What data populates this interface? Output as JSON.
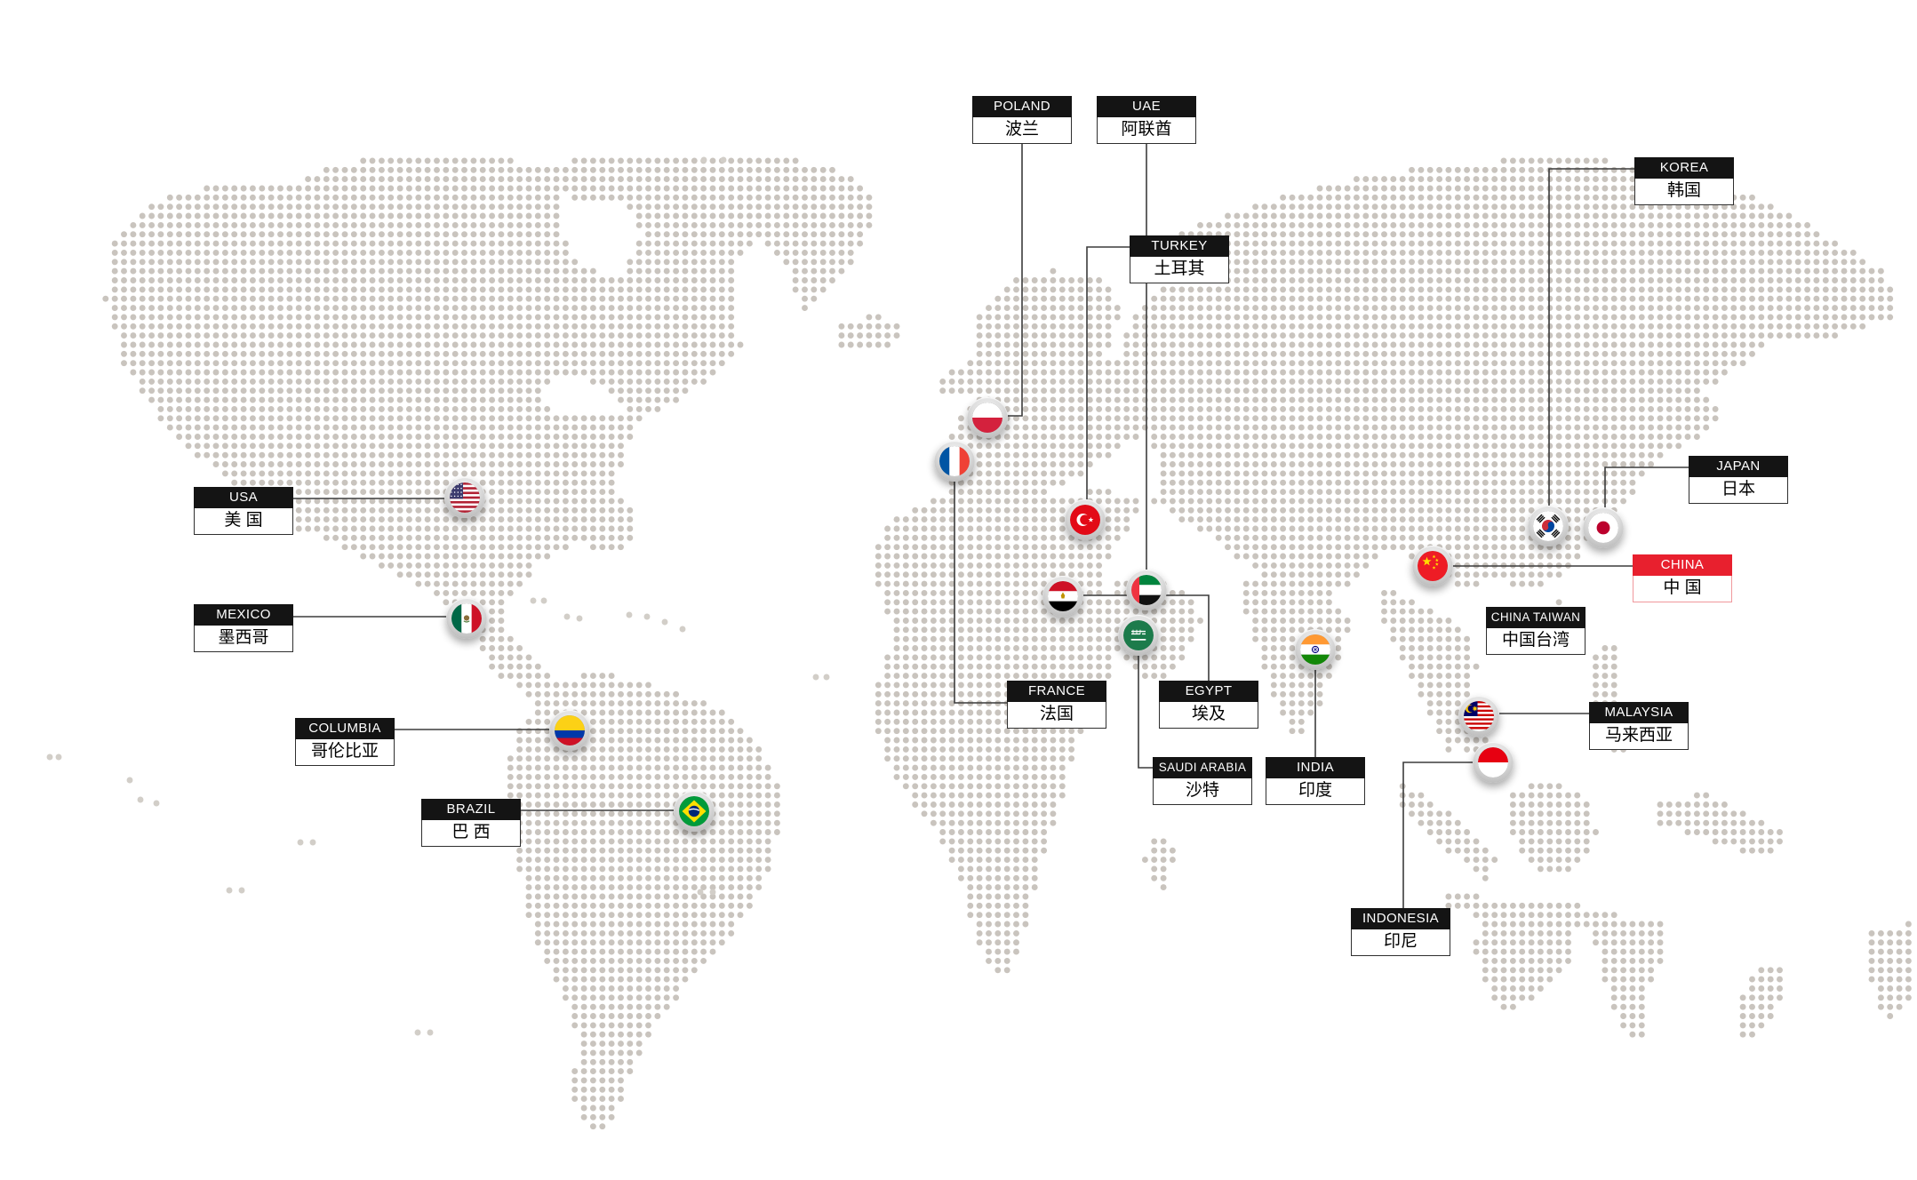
{
  "map": {
    "dot_color": "#c9c4be",
    "extra_dot_color": "#d2cec8",
    "connector_color": "#3c3c3c",
    "background": "#ffffff"
  },
  "label_style": {
    "header_bg": "#141414",
    "header_text": "#ffffff",
    "body_bg": "#ffffff",
    "body_text": "#000000",
    "border": "#2f2f2f",
    "highlight_header_bg": "#e8202e",
    "highlight_border": "#f0989c"
  },
  "countries": [
    {
      "id": "usa",
      "en": "USA",
      "zh": "美 国",
      "flag": "us",
      "highlight": false
    },
    {
      "id": "mexico",
      "en": "MEXICO",
      "zh": "墨西哥",
      "flag": "mx",
      "highlight": false
    },
    {
      "id": "columbia",
      "en": "COLUMBIA",
      "zh": "哥伦比亚",
      "flag": "co",
      "highlight": false
    },
    {
      "id": "brazil",
      "en": "BRAZIL",
      "zh": "巴 西",
      "flag": "br",
      "highlight": false
    },
    {
      "id": "poland",
      "en": "POLAND",
      "zh": "波兰",
      "flag": "pl",
      "highlight": false
    },
    {
      "id": "france",
      "en": "FRANCE",
      "zh": "法国",
      "flag": "fr",
      "highlight": false
    },
    {
      "id": "turkey",
      "en": "TURKEY",
      "zh": "土耳其",
      "flag": "tr",
      "highlight": false
    },
    {
      "id": "egypt",
      "en": "EGYPT",
      "zh": "埃及",
      "flag": "eg",
      "highlight": false
    },
    {
      "id": "uae",
      "en": "UAE",
      "zh": "阿联酋",
      "flag": "ae",
      "highlight": false
    },
    {
      "id": "saudi-arabia",
      "en": "SAUDI ARABIA",
      "zh": "沙特",
      "flag": "sa",
      "highlight": false
    },
    {
      "id": "india",
      "en": "INDIA",
      "zh": "印度",
      "flag": "in",
      "highlight": false
    },
    {
      "id": "china",
      "en": "CHINA",
      "zh": "中 国",
      "flag": "cn",
      "highlight": true
    },
    {
      "id": "china-taiwan",
      "en": "CHINA TAIWAN",
      "zh": "中国台湾",
      "flag": null,
      "highlight": false
    },
    {
      "id": "korea",
      "en": "KOREA",
      "zh": "韩国",
      "flag": "kr",
      "highlight": false
    },
    {
      "id": "japan",
      "en": "JAPAN",
      "zh": "日本",
      "flag": "jp",
      "highlight": false
    },
    {
      "id": "malaysia",
      "en": "MALAYSIA",
      "zh": "马来西亚",
      "flag": "my",
      "highlight": false
    },
    {
      "id": "indonesia",
      "en": "INDONESIA",
      "zh": "印尼",
      "flag": "id",
      "highlight": false
    }
  ]
}
